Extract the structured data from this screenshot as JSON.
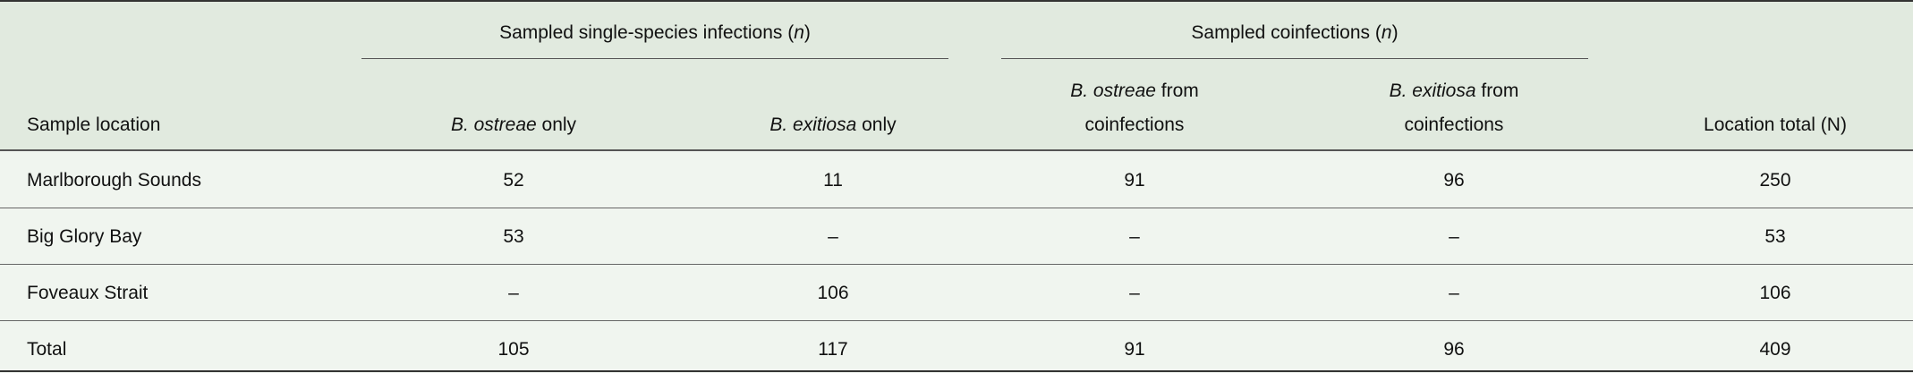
{
  "header": {
    "group_single": {
      "text": "Sampled single-species infections (",
      "italic": "n",
      "close": ")"
    },
    "group_coinf": {
      "text": "Sampled coinfections (",
      "italic": "n",
      "close": ")"
    },
    "columns": [
      {
        "label": "Sample location"
      },
      {
        "italic": "B. ostreae",
        "rest": " only"
      },
      {
        "italic": "B. exitiosa",
        "rest": " only"
      },
      {
        "italic": "B. ostreae",
        "rest": " from",
        "line2": "coinfections"
      },
      {
        "italic": "B. exitiosa",
        "rest": " from",
        "line2": "coinfections"
      },
      {
        "label": "Location total (N)"
      }
    ]
  },
  "rows": [
    {
      "location": "Marlborough Sounds",
      "values": [
        "52",
        "11",
        "91",
        "96",
        "250"
      ]
    },
    {
      "location": "Big Glory Bay",
      "values": [
        "53",
        "–",
        "–",
        "–",
        "53"
      ]
    },
    {
      "location": "Foveaux Strait",
      "values": [
        "–",
        "106",
        "–",
        "–",
        "106"
      ]
    },
    {
      "location": "Total",
      "values": [
        "105",
        "117",
        "91",
        "96",
        "409"
      ]
    }
  ],
  "colors": {
    "header_bg": "#e1eadf",
    "body_bg": "#f0f5ef",
    "rule": "#555555"
  }
}
